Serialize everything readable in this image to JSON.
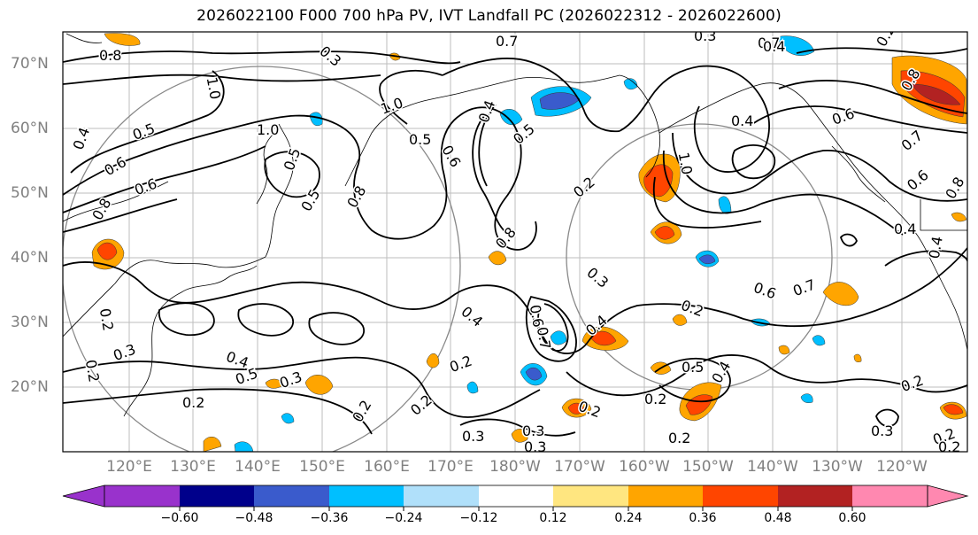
{
  "title": "2026022100 F000 700 hPa PV, IVT Landfall PC (2026022312 - 2026022600)",
  "lat_labels": [
    "70°N",
    "60°N",
    "50°N",
    "40°N",
    "30°N",
    "20°N"
  ],
  "lon_labels": [
    "120°E",
    "130°E",
    "140°E",
    "150°E",
    "160°E",
    "170°E",
    "180°W",
    "170°W",
    "160°W",
    "150°W",
    "140°W",
    "130°W",
    "120°W"
  ],
  "colorbar": {
    "colors": [
      "#9932cc",
      "#00008b",
      "#3a5bcc",
      "#00bfff",
      "#b0e0fa",
      "#ffffff",
      "#ffe680",
      "#ffa500",
      "#ff4500",
      "#b22222",
      "#ff88b0"
    ],
    "ticks": [
      "−0.60",
      "−0.48",
      "−0.36",
      "−0.24",
      "−0.12",
      "0.12",
      "0.24",
      "0.36",
      "0.48",
      "0.60"
    ]
  },
  "contour_labels": [
    "0.7",
    "0.8",
    "1.0",
    "1.0",
    "0.4",
    "0.6",
    "0.5",
    "0.7",
    "0.4",
    "1.0",
    "0.5",
    "0.5",
    "0.6",
    "0.8",
    "0.6",
    "0.5",
    "0.4",
    "0.6",
    "0.7",
    "0.8",
    "0.2",
    "0.8",
    "0.4",
    "1.0",
    "0.4",
    "0.6",
    "0.8",
    "0.6",
    "0.7",
    "0.3",
    "0.6",
    "0.7",
    "0.2",
    "0.4",
    "0.2",
    "0.3",
    "0.4",
    "0.5",
    "0.3",
    "0.4",
    "0.2",
    "0.2",
    "0.2",
    "0.3",
    "0.3",
    "0.2",
    "0.5",
    "0.4",
    "0.2",
    "0.2",
    "0.3",
    "0.2",
    "0.2",
    "0.2",
    "0.2",
    "0.3",
    "0.2",
    "0.3",
    "0.4",
    "0.3",
    "0.5",
    "0.2",
    "0.8"
  ]
}
